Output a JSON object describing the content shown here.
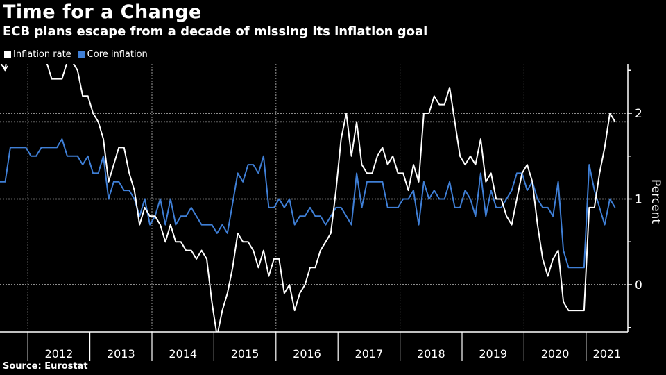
{
  "colors": {
    "background": "#000000",
    "inflation": "#ffffff",
    "core": "#3f7fd6",
    "grid": "#aaaaaa"
  },
  "chart_data": {
    "type": "line",
    "title": "Time for a Change",
    "subtitle": "ECB plans escape from a decade of missing its inflation goal",
    "ylabel": "Percent",
    "xlabel": "",
    "ylim": [
      -0.55,
      2.55
    ],
    "yticks": [
      0,
      1,
      2
    ],
    "ytick_labels": [
      "0",
      "1",
      "2"
    ],
    "reference_line": 1.9,
    "x_start": "2011-07",
    "x_frequency": "monthly",
    "year_labels": [
      "2012",
      "2013",
      "2014",
      "2015",
      "2016",
      "2017",
      "2018",
      "2019",
      "2020",
      "2021"
    ],
    "legend_placement": "top-left",
    "series": [
      {
        "name": "Inflation rate",
        "color": "#ffffff",
        "values": [
          2.6,
          2.5,
          3.0,
          3.0,
          3.0,
          2.7,
          2.7,
          2.7,
          2.7,
          2.6,
          2.4,
          2.4,
          2.4,
          2.6,
          2.6,
          2.5,
          2.2,
          2.2,
          2.0,
          1.9,
          1.7,
          1.2,
          1.4,
          1.6,
          1.6,
          1.3,
          1.1,
          0.7,
          0.9,
          0.8,
          0.8,
          0.7,
          0.5,
          0.7,
          0.5,
          0.5,
          0.4,
          0.4,
          0.3,
          0.4,
          0.3,
          -0.2,
          -0.6,
          -0.3,
          -0.1,
          0.2,
          0.6,
          0.5,
          0.5,
          0.4,
          0.2,
          0.4,
          0.1,
          0.3,
          0.3,
          -0.1,
          0.0,
          -0.3,
          -0.1,
          0.0,
          0.2,
          0.2,
          0.4,
          0.5,
          0.6,
          1.1,
          1.7,
          2.0,
          1.5,
          1.9,
          1.4,
          1.3,
          1.3,
          1.5,
          1.6,
          1.4,
          1.5,
          1.3,
          1.3,
          1.1,
          1.4,
          1.2,
          2.0,
          2.0,
          2.2,
          2.1,
          2.1,
          2.3,
          1.9,
          1.5,
          1.4,
          1.5,
          1.4,
          1.7,
          1.2,
          1.3,
          1.0,
          1.0,
          0.8,
          0.7,
          1.0,
          1.3,
          1.4,
          1.2,
          0.7,
          0.3,
          0.1,
          0.3,
          0.4,
          -0.2,
          -0.3,
          -0.3,
          -0.3,
          -0.3,
          0.9,
          0.9,
          1.3,
          1.6,
          2.0,
          1.9
        ]
      },
      {
        "name": "Core inflation",
        "color": "#3f7fd6",
        "values": [
          1.2,
          1.2,
          1.6,
          1.6,
          1.6,
          1.6,
          1.5,
          1.5,
          1.6,
          1.6,
          1.6,
          1.6,
          1.7,
          1.5,
          1.5,
          1.5,
          1.4,
          1.5,
          1.3,
          1.3,
          1.5,
          1.0,
          1.2,
          1.2,
          1.1,
          1.1,
          1.0,
          0.8,
          1.0,
          0.7,
          0.8,
          1.0,
          0.7,
          1.0,
          0.7,
          0.8,
          0.8,
          0.9,
          0.8,
          0.7,
          0.7,
          0.7,
          0.6,
          0.7,
          0.6,
          0.95,
          1.3,
          1.2,
          1.4,
          1.4,
          1.3,
          1.5,
          0.9,
          0.9,
          1.0,
          0.9,
          1.0,
          0.7,
          0.8,
          0.8,
          0.9,
          0.8,
          0.8,
          0.7,
          0.8,
          0.9,
          0.9,
          0.8,
          0.7,
          1.3,
          0.9,
          1.2,
          1.2,
          1.2,
          1.2,
          0.9,
          0.9,
          0.9,
          1.0,
          1.0,
          1.1,
          0.7,
          1.2,
          1.0,
          1.1,
          1.0,
          1.0,
          1.2,
          0.9,
          0.9,
          1.1,
          1.0,
          0.8,
          1.3,
          0.8,
          1.1,
          0.9,
          0.9,
          1.0,
          1.1,
          1.3,
          1.3,
          1.1,
          1.2,
          1.0,
          0.9,
          0.9,
          0.8,
          1.2,
          0.4,
          0.2,
          0.2,
          0.2,
          0.2,
          1.4,
          1.1,
          0.9,
          0.7,
          1.0,
          0.9
        ]
      }
    ]
  },
  "legend": {
    "inflation": "Inflation rate",
    "core": "Core inflation"
  },
  "source": "Source: Eurostat"
}
